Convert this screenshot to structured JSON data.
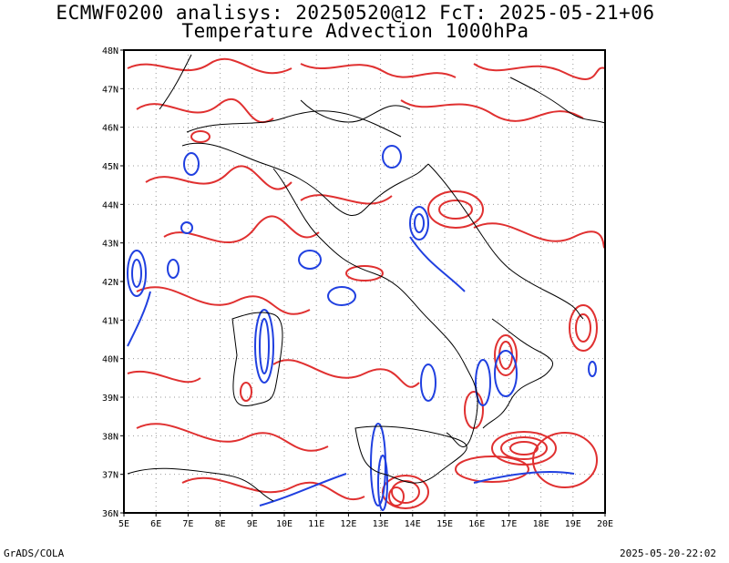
{
  "title_line1": "ECMWF0200 analisys: 20250520@12 FcT: 2025-05-21+06",
  "title_line2": "Temperature Advection 1000hPa",
  "footer_left": "GrADS/COLA",
  "footer_right": "2025-05-20-22:02",
  "map": {
    "lon_range": [
      5,
      20
    ],
    "lat_range": [
      36,
      48
    ],
    "lon_ticks": [
      "5E",
      "6E",
      "7E",
      "8E",
      "9E",
      "10E",
      "11E",
      "12E",
      "13E",
      "14E",
      "15E",
      "16E",
      "17E",
      "18E",
      "19E",
      "20E"
    ],
    "lat_ticks": [
      "36N",
      "37N",
      "38N",
      "39N",
      "40N",
      "41N",
      "42N",
      "43N",
      "44N",
      "45N",
      "46N",
      "47N",
      "48N"
    ],
    "colors": {
      "positive": "#e03030",
      "negative": "#2040e0",
      "coast": "#000000",
      "grid": "#999999"
    }
  }
}
